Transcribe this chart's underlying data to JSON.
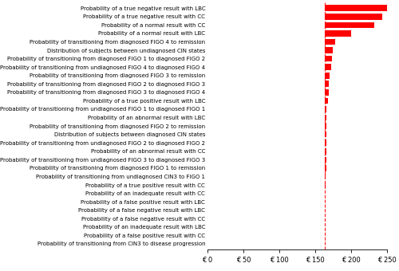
{
  "labels": [
    "Probability of a true negative result with LBC",
    "Probability of a true negative result with CC",
    "Probability of a normal result with CC",
    "Probability of a normal result with LBC",
    "Probability of transitioning from diagnosed FIGO 4 to remission",
    "Distribution of subjects between undiagnosed CIN states",
    "Probability of transitioning from diagnosed FIGO 1 to diagnosed FIGO 2",
    "Probability of transitioning from undiagnosed FIGO 4 to diagnosed FIGO 4",
    "Probability of transitioning from diagnosed FIGO 3 to remission",
    "Probability of transitioning from diagnosed FIGO 2 to diagnosed FIGO 3",
    "Probability of transitioning from diagnosed FIGO 3 to diagnosed FIGO 4",
    "Probability of a true positive result with LBC",
    "Probability of transitioning from undiagnosed FIGO 1 to diagnosed FIGO 1",
    "Probability of an abnormal result with LBC",
    "Probability of transitioning from diagnosed FIGO 2 to remission",
    "Distribution of subjects between diagnosed CIN states",
    "Probability of transitioning from undiagnosed FIGO 2 to diagnosed FIGO 2",
    "Probability of an abnormal result with CC",
    "Probability of transitioning from undiagnosed FIGO 3 to diagnosed FIGO 3",
    "Probability of transitioning from diagnosed FIGO 1 to remission",
    "Probability of transitioning from undiagnosed CIN3 to FIGO 1",
    "Probability of a true positive result with CC",
    "Probability of an inadequate result with CC",
    "Probability of a false positive result with LBC",
    "Probability of a false negative result with LBC",
    "Probability of a false negative result with CC",
    "Probability of an inadequate result with LBC",
    "Probability of a false positive result with CC",
    "Probability of transitioning from CIN3 to disease progression"
  ],
  "bar_widths": [
    87,
    80,
    69,
    37,
    15,
    11,
    10,
    9,
    7,
    6,
    6,
    5,
    3,
    3,
    3,
    2,
    2,
    2,
    2,
    2,
    1,
    1,
    0.5,
    0.3,
    0.3,
    0.3,
    0.3,
    0.3,
    0.1
  ],
  "baseline": 163,
  "bar_color": "#ff0000",
  "baseline_color": "#ff0000",
  "xlim": [
    0,
    250
  ],
  "xticks": [
    0,
    50,
    100,
    150,
    200,
    250
  ],
  "xticklabels": [
    "€ 0",
    "€ 50",
    "€ 100",
    "€ 150",
    "€ 200",
    "€ 250"
  ],
  "bar_height": 0.72,
  "background_color": "#ffffff",
  "label_fontsize": 5.0,
  "tick_fontsize": 6.0
}
